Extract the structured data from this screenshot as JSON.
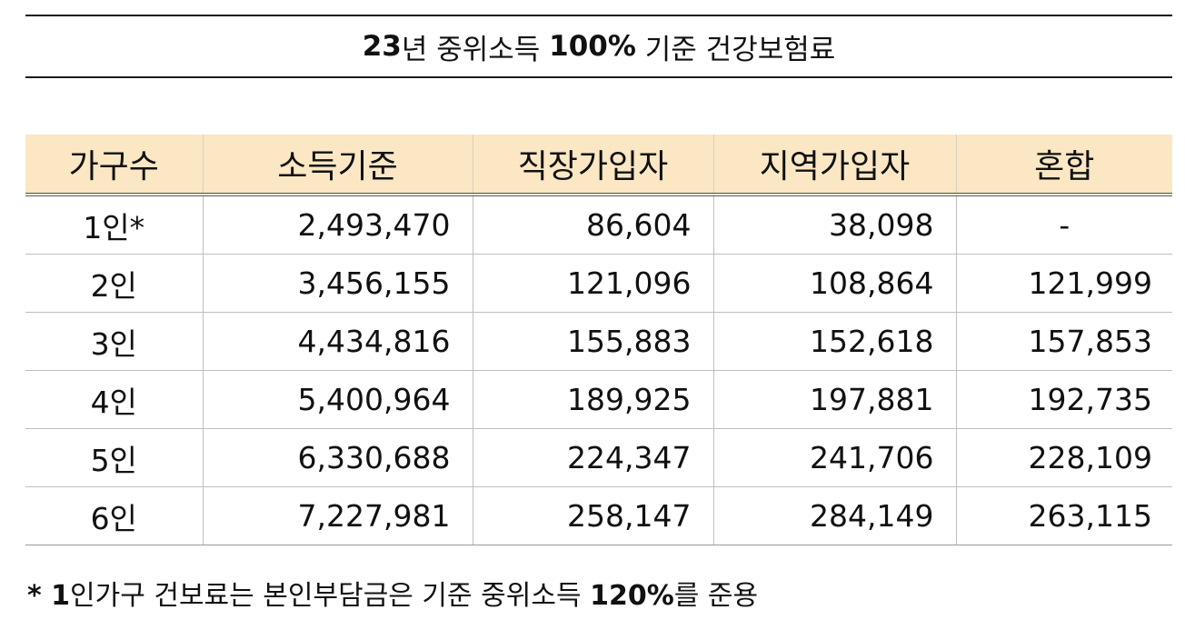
{
  "title": {
    "year": "23",
    "part1": "년 중위소득 ",
    "percent": "100%",
    "part2": " 기준 건강보험료"
  },
  "table": {
    "headers": [
      "가구수",
      "소득기준",
      "직장가입자",
      "지역가입자",
      "혼합"
    ],
    "rows": [
      {
        "household": "1인*",
        "income": "2,493,470",
        "employee": "86,604",
        "regional": "38,098",
        "mixed": "-"
      },
      {
        "household": "2인",
        "income": "3,456,155",
        "employee": "121,096",
        "regional": "108,864",
        "mixed": "121,999"
      },
      {
        "household": "3인",
        "income": "4,434,816",
        "employee": "155,883",
        "regional": "152,618",
        "mixed": "157,853"
      },
      {
        "household": "4인",
        "income": "5,400,964",
        "employee": "189,925",
        "regional": "197,881",
        "mixed": "192,735"
      },
      {
        "household": "5인",
        "income": "6,330,688",
        "employee": "224,347",
        "regional": "241,706",
        "mixed": "228,109"
      },
      {
        "household": "6인",
        "income": "7,227,981",
        "employee": "258,147",
        "regional": "284,149",
        "mixed": "263,115"
      }
    ]
  },
  "footnote": {
    "mark": "* 1",
    "text1": "인가구 건보료는 본인부담금은 기준 중위소득 ",
    "percent": "120%",
    "text2": "를 준용"
  },
  "colors": {
    "header_bg": "#fbe7c4",
    "text": "#111111",
    "rule": "#1a1a1a"
  }
}
